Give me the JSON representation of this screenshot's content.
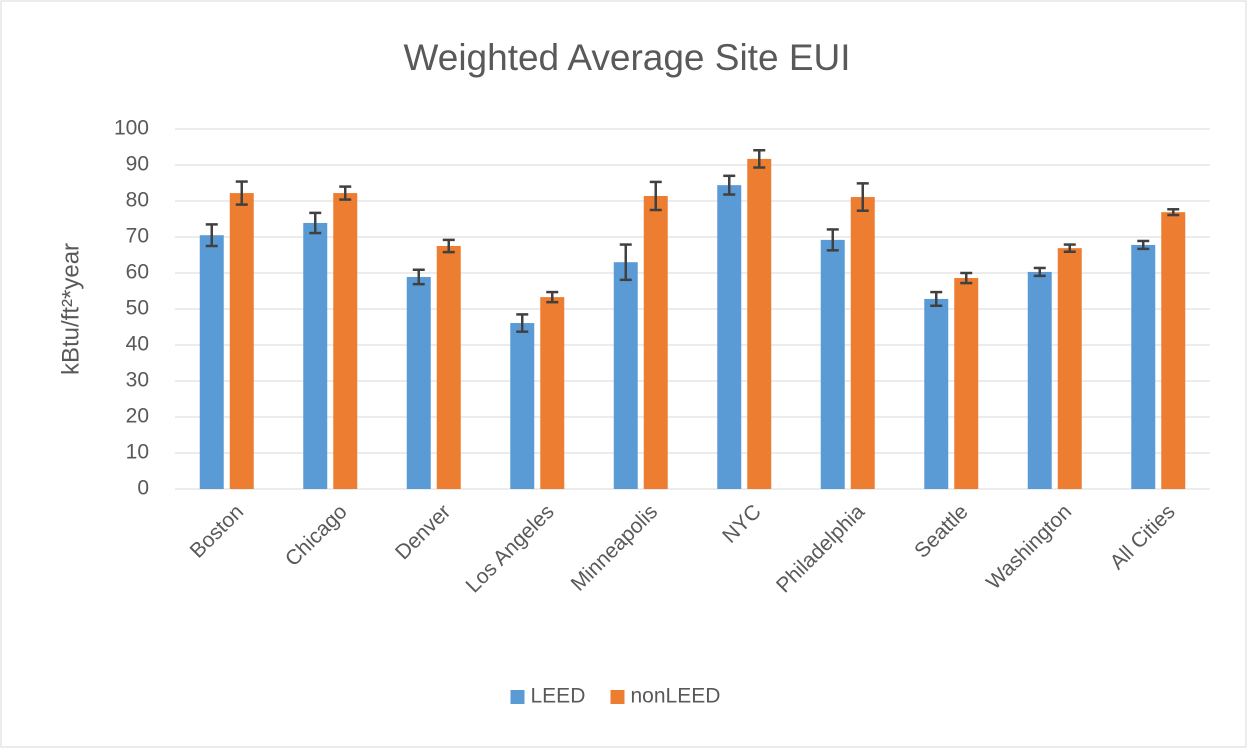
{
  "chart_data": {
    "type": "bar",
    "title": "Weighted Average Site EUI",
    "y_label": "kBtu/ft²*year",
    "categories": [
      "Boston",
      "Chicago",
      "Denver",
      "Los Angeles",
      "Minneapolis",
      "NYC",
      "Philadelphia",
      "Seattle",
      "Washington",
      "All Cities"
    ],
    "series": [
      {
        "name": "LEED",
        "color": "#5b9bd5",
        "values": [
          70.5,
          73.9,
          58.9,
          46.1,
          63.0,
          84.4,
          69.2,
          52.8,
          60.3,
          67.8
        ],
        "errors": [
          3.0,
          2.8,
          2.0,
          2.4,
          4.9,
          2.6,
          2.9,
          1.9,
          1.1,
          1.1
        ]
      },
      {
        "name": "nonLEED",
        "color": "#ed7d31",
        "values": [
          82.2,
          82.2,
          67.5,
          53.3,
          81.4,
          91.7,
          81.1,
          58.6,
          66.9,
          76.9
        ],
        "errors": [
          3.2,
          1.8,
          1.7,
          1.4,
          3.9,
          2.4,
          3.8,
          1.4,
          1.0,
          0.8
        ]
      }
    ],
    "ylim": [
      0,
      100
    ],
    "yticks": [
      0,
      10,
      20,
      30,
      40,
      50,
      60,
      70,
      80,
      90,
      100
    ],
    "grid": true,
    "legend": "bottom"
  }
}
